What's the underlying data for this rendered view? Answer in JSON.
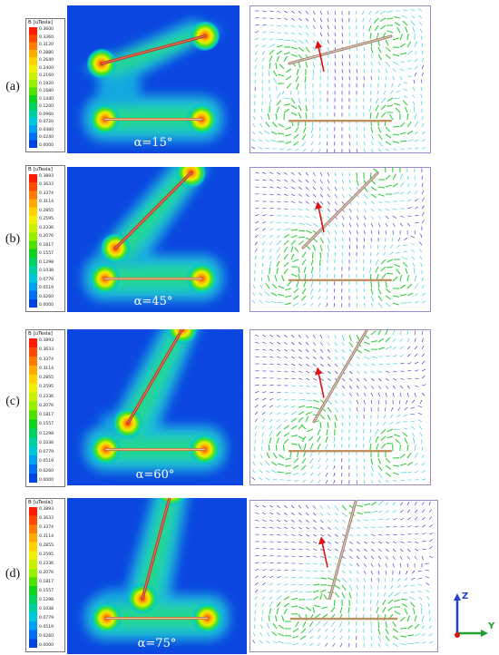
{
  "figure": {
    "panels": [
      {
        "label": "(a)",
        "angle": "α=15°",
        "angle_deg": 15,
        "legend_title": "B [uTesla]",
        "ticks": [
          "0.3600",
          "0.3360",
          "0.3120",
          "0.2880",
          "0.2640",
          "0.2400",
          "0.2160",
          "0.1920",
          "0.1680",
          "0.1440",
          "0.1200",
          "0.0960",
          "0.0720",
          "0.0480",
          "0.0240",
          "0.0000"
        ]
      },
      {
        "label": "(b)",
        "angle": "α=45°",
        "angle_deg": 45,
        "legend_title": "B [uTesla]",
        "ticks": [
          "0.3893",
          "0.3633",
          "0.3374",
          "0.3114",
          "0.2855",
          "0.2595",
          "0.2336",
          "0.2076",
          "0.1817",
          "0.1557",
          "0.1298",
          "0.1038",
          "0.0779",
          "0.0519",
          "0.0260",
          "0.0000"
        ]
      },
      {
        "label": "(c)",
        "angle": "α=60°",
        "angle_deg": 60,
        "legend_title": "B [uTesla]",
        "ticks": [
          "0.3893",
          "0.3633",
          "0.3374",
          "0.3114",
          "0.2855",
          "0.2595",
          "0.2336",
          "0.2076",
          "0.1817",
          "0.1557",
          "0.1298",
          "0.1038",
          "0.0779",
          "0.0519",
          "0.0260",
          "0.0000"
        ]
      },
      {
        "label": "(d)",
        "angle": "α=75°",
        "angle_deg": 75,
        "legend_title": "B [uTesla]",
        "ticks": [
          "0.3893",
          "0.3633",
          "0.3374",
          "0.3114",
          "0.2855",
          "0.2595",
          "0.2336",
          "0.2076",
          "0.1817",
          "0.1557",
          "0.1298",
          "0.1038",
          "0.0779",
          "0.0519",
          "0.0260",
          "0.0000"
        ]
      }
    ],
    "axes": {
      "z_label": "Z",
      "y_label": "Y"
    },
    "colors": {
      "scale": [
        "#ff1a00",
        "#ff4a00",
        "#ff7a00",
        "#ffaa00",
        "#ffd200",
        "#f0f000",
        "#c8f000",
        "#96f000",
        "#50e000",
        "#10d020",
        "#00d060",
        "#00d0a0",
        "#00c8d8",
        "#00a0f0",
        "#0070f0",
        "#0044e0"
      ],
      "heatmap_background": "#0b46e0",
      "conductor": "#c0392b",
      "vector_blue": "#2a2ad0",
      "vector_cyan": "#20c8d8",
      "vector_green": "#30d040",
      "vector_red": "#e01010"
    }
  }
}
